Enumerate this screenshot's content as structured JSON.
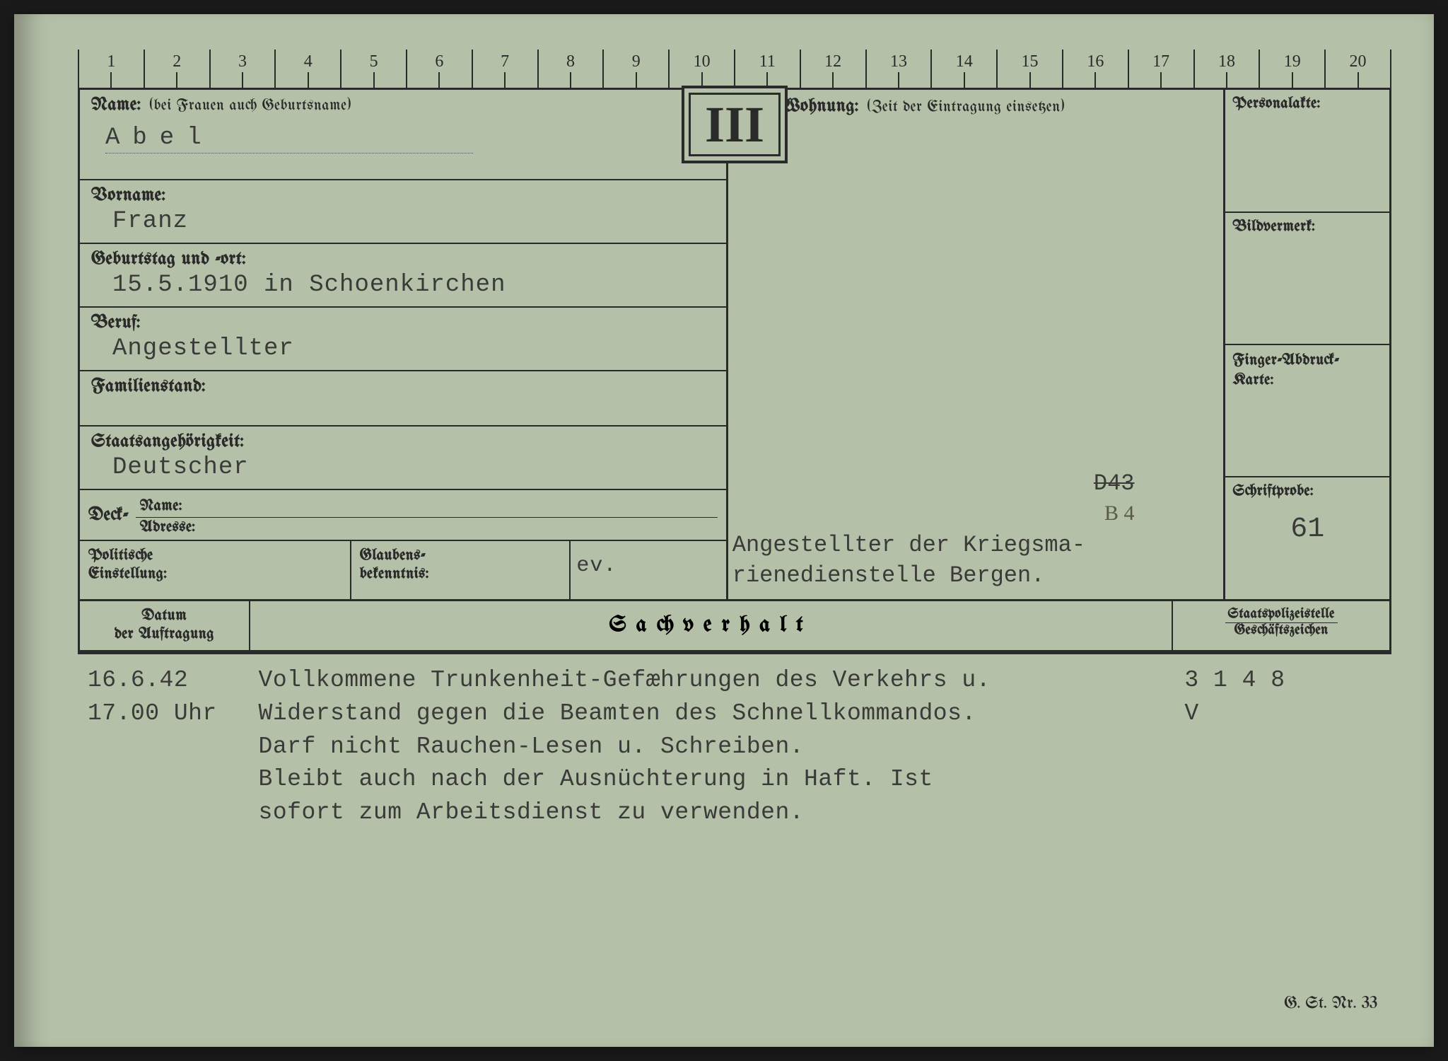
{
  "card": {
    "roman_numeral": "III",
    "ruler_count": 20,
    "background_color": "#b5c0a8",
    "line_color": "#2a2a2a",
    "typed_color": "#3a3a38"
  },
  "labels": {
    "name": "Name:",
    "name_hint": "(bei Frauen auch Geburtsname)",
    "wohnung": "Wohnung:",
    "wohnung_hint": "(Zeit der Eintragung einsetzen)",
    "vorname": "Vorname:",
    "geburtstag": "Geburtstag und -ort:",
    "beruf": "Beruf:",
    "familienstand": "Familienstand:",
    "staats": "Staatsangehörigkeit:",
    "deck": "Deck-",
    "deck_name": "Name:",
    "deck_adresse": "Adresse:",
    "politische": "Politische Einstellung:",
    "glaubens": "Glaubens-bekenntnis:",
    "personalakte": "Personalakte:",
    "bildvermerk": "Bildvermerk:",
    "fingerabdruck": "Finger-Abdruck-Karte:",
    "schriftprobe": "Schriftprobe:",
    "datum": "Datum der Auftragung",
    "sachverhalt": "Sachverhalt",
    "staatspolizei_top": "Staatspolizeistelle",
    "staatspolizei_bot": "Geschäftszeichen",
    "footer": "G. St. Nr. 33"
  },
  "values": {
    "name": "Abel",
    "vorname": "Franz",
    "geburtstag": "15.5.1910 in Schoenkirchen",
    "beruf": "Angestellter",
    "familienstand": "",
    "staats": "Deutscher",
    "glaubens": "ev.",
    "wohnung_code_strike": "D43",
    "wohnung_code_hand": "B 4",
    "wohnung_text_l1": "Angestellter der Kriegsma-",
    "wohnung_text_l2": "rienedienstelle Bergen.",
    "schriftprobe": "61"
  },
  "entries": [
    {
      "date_l1": "16.6.42",
      "date_l2": "17.00 Uhr",
      "text_l1": "Vollkommene Trunkenheit-Gefæhrungen des Verkehrs u.",
      "text_l2": "Widerstand gegen die Beamten des Schnellkommandos.",
      "text_l3": "Darf nicht Rauchen-Lesen u. Schreiben.",
      "text_l4": "Bleibt auch nach der Ausnüchterung in Haft. Ist",
      "text_l5": "sofort zum Arbeitsdienst zu verwenden.",
      "ref_l1": "3 1 4 8",
      "ref_l2": "V"
    }
  ]
}
